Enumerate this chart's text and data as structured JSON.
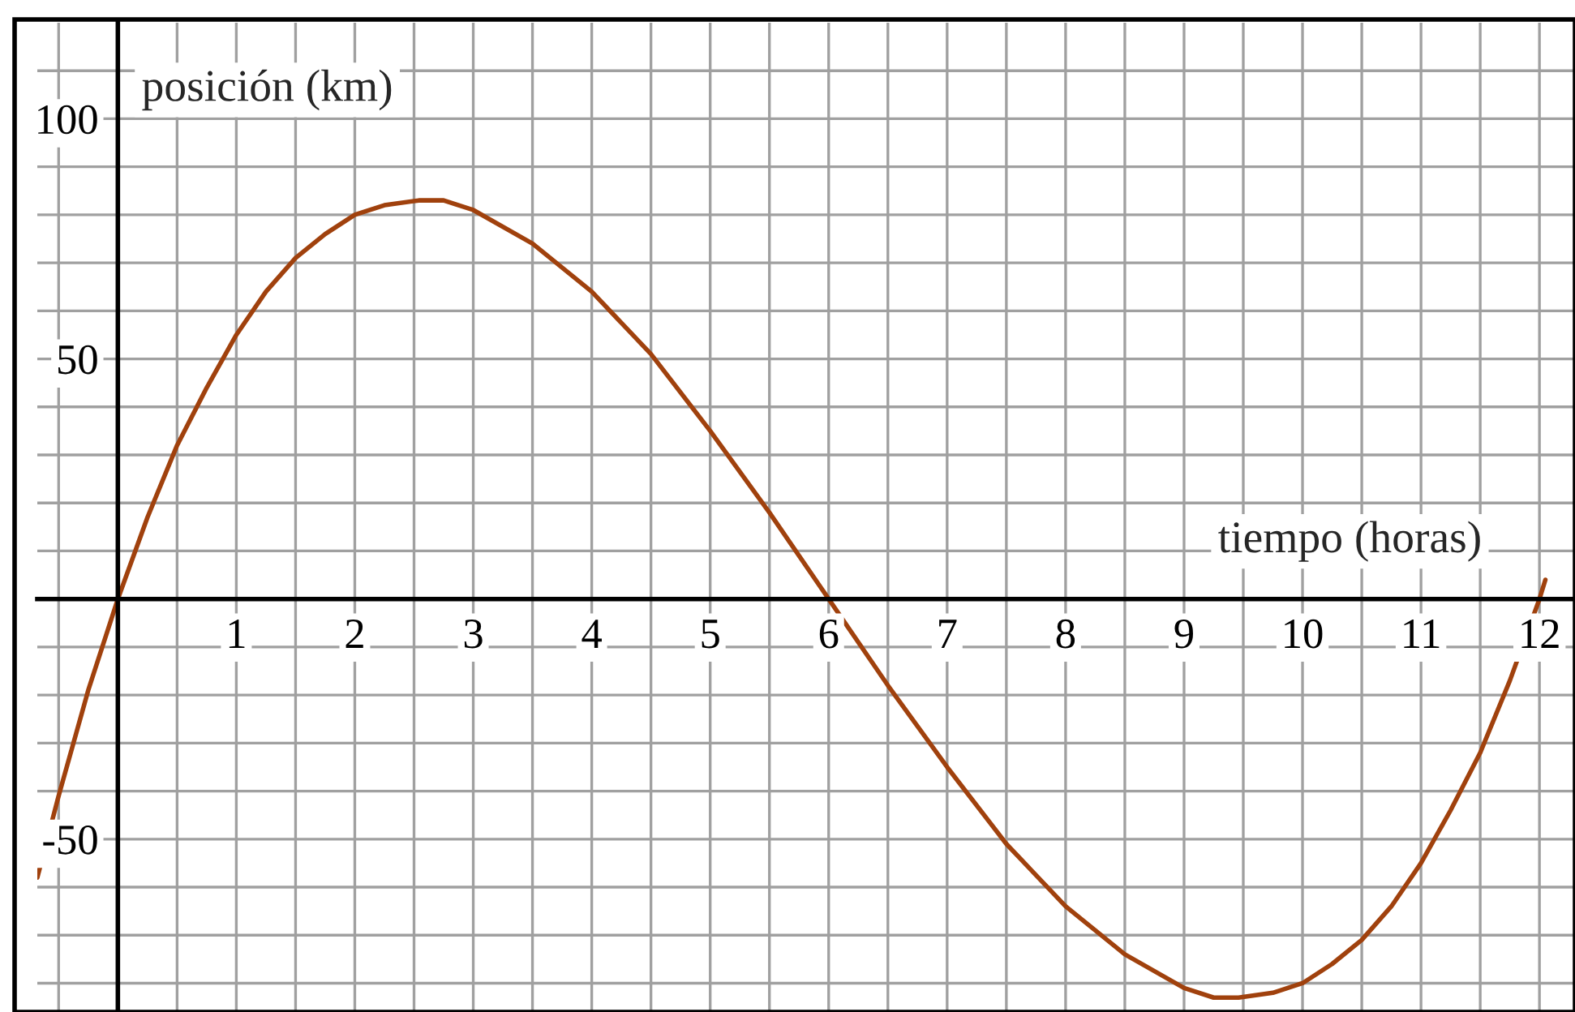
{
  "chart_data": {
    "type": "line",
    "xlabel": "tiempo (horas)",
    "ylabel": "posición (km)",
    "x": [
      -0.68,
      -0.5,
      -0.25,
      0,
      0.25,
      0.5,
      0.75,
      1,
      1.25,
      1.5,
      1.75,
      2,
      2.25,
      2.54,
      2.75,
      3,
      3.5,
      4,
      4.5,
      5,
      5.5,
      6,
      6.5,
      7,
      7.5,
      8,
      8.5,
      9,
      9.25,
      9.46,
      9.75,
      10,
      10.25,
      10.5,
      10.75,
      11,
      11.25,
      11.5,
      11.75,
      12,
      12.05
    ],
    "series": [
      {
        "color": "#a0410d",
        "values": [
          -58,
          -41,
          -19,
          0,
          17,
          32,
          44,
          55,
          64,
          71,
          76,
          80,
          82,
          83,
          83,
          81,
          74,
          64,
          51,
          35,
          18,
          0,
          -18,
          -35,
          -51,
          -64,
          -74,
          -81,
          -83,
          -83,
          -82,
          -80,
          -76,
          -71,
          -64,
          -55,
          -44,
          -32,
          -17,
          0,
          4
        ]
      }
    ],
    "xlim": [
      -0.68,
      12.3
    ],
    "ylim": [
      -86,
      120
    ],
    "xticks": [
      {
        "value": -0.5,
        "label": null
      },
      {
        "value": 0,
        "label": null
      },
      {
        "value": 0.5,
        "label": null
      },
      1,
      {
        "value": 1.5,
        "label": null
      },
      2,
      {
        "value": 2.5,
        "label": null
      },
      3,
      {
        "value": 3.5,
        "label": null
      },
      4,
      {
        "value": 4.5,
        "label": null
      },
      5,
      {
        "value": 5.5,
        "label": null
      },
      6,
      {
        "value": 6.5,
        "label": null
      },
      7,
      {
        "value": 7.5,
        "label": null
      },
      8,
      {
        "value": 8.5,
        "label": null
      },
      9,
      {
        "value": 9.5,
        "label": null
      },
      10,
      {
        "value": 10.5,
        "label": null
      },
      11,
      {
        "value": 11.5,
        "label": null
      },
      12
    ],
    "yticks": [
      {
        "value": -80,
        "label": null
      },
      {
        "value": -70,
        "label": null
      },
      {
        "value": -60,
        "label": null
      },
      -50,
      {
        "value": -40,
        "label": null
      },
      {
        "value": -30,
        "label": null
      },
      {
        "value": -20,
        "label": null
      },
      {
        "value": -10,
        "label": null
      },
      {
        "value": 0,
        "label": null
      },
      {
        "value": 10,
        "label": null
      },
      {
        "value": 20,
        "label": null
      },
      {
        "value": 30,
        "label": null
      },
      {
        "value": 40,
        "label": null
      },
      50,
      {
        "value": 60,
        "label": null
      },
      {
        "value": 70,
        "label": null
      },
      {
        "value": 80,
        "label": null
      },
      {
        "value": 90,
        "label": null
      },
      100,
      {
        "value": 110,
        "label": null
      }
    ],
    "grid": true,
    "marker": "none",
    "line_style": "solid"
  }
}
